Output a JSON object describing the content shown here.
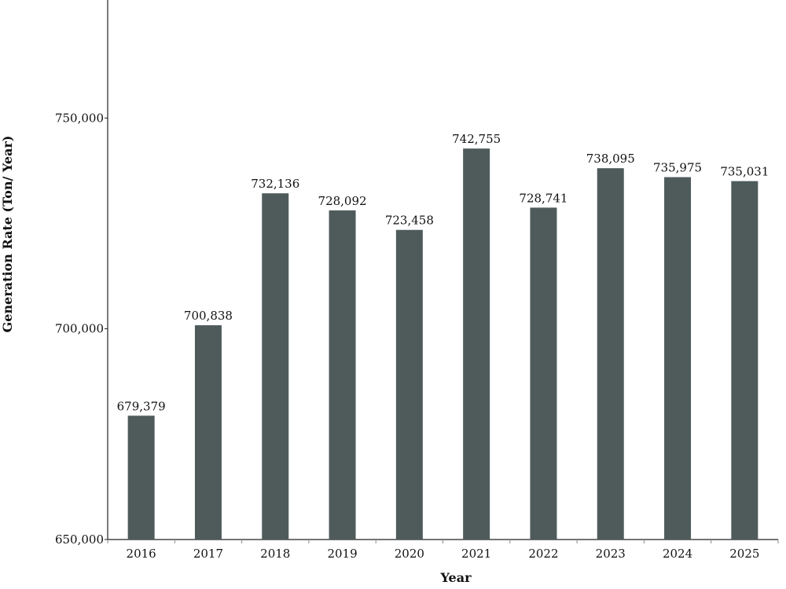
{
  "chart_data": {
    "type": "bar",
    "title": "",
    "xlabel": "Year",
    "ylabel": "Generation Rate (Ton/ Year)",
    "categories": [
      "2016",
      "2017",
      "2018",
      "2019",
      "2020",
      "2021",
      "2022",
      "2023",
      "2024",
      "2025"
    ],
    "values": [
      679379,
      700838,
      732136,
      728092,
      723458,
      742755,
      728741,
      738095,
      735975,
      735031
    ],
    "data_labels": [
      "679,379",
      "700,838",
      "732,136",
      "728,092",
      "723,458",
      "742,755",
      "728,741",
      "738,095",
      "735,975",
      "735,031"
    ],
    "ylim": [
      650000,
      778000
    ],
    "yticks": [
      650000,
      700000,
      750000
    ],
    "ytick_labels": [
      "650,000",
      "700,000",
      "750,000"
    ],
    "grid": false,
    "legend": "none",
    "bar_color": "#4f5b5b"
  }
}
